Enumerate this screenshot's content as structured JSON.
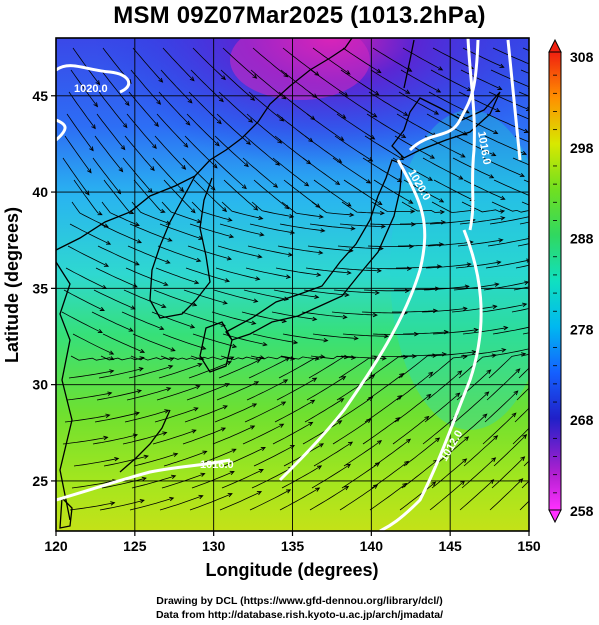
{
  "title": "MSM 09Z07Mar2025 (1013.2hPa)",
  "map": {
    "lon_range": [
      120,
      150
    ],
    "lat_range": [
      22.4,
      48
    ],
    "x_ticks": [
      "120",
      "125",
      "130",
      "135",
      "140",
      "145",
      "150"
    ],
    "y_ticks": [
      "25",
      "30",
      "35",
      "40",
      "45"
    ],
    "xlabel": "Longitude (degrees)",
    "ylabel": "Latitude  (degrees)",
    "grid": true,
    "field": "temperature (shaded) with wind streamlines",
    "isobar_labels": [
      "1020.0",
      "1016.0",
      "1020.0",
      "1016.0",
      "1012.0"
    ]
  },
  "colorbar": {
    "labels": [
      "308",
      "298",
      "288",
      "278",
      "268",
      "258"
    ],
    "min": 258,
    "max": 308,
    "colors": [
      "#f0f",
      "#2020c0",
      "#1060ff",
      "#00c8e0",
      "#30e070",
      "#a0e020",
      "#f0e000",
      "#ff8000",
      "#f02010"
    ]
  },
  "credits": {
    "line1": "Drawing by DCL (https://www.gfd-dennou.org/library/dcl/)",
    "line2": "Data from http://database.rish.kyoto-u.ac.jp/arch/jmadata/"
  }
}
